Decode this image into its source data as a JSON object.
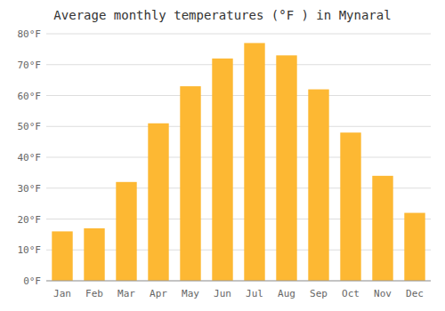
{
  "chart_data": {
    "type": "bar",
    "title": "Average monthly temperatures (°F ) in Mynaral",
    "categories": [
      "Jan",
      "Feb",
      "Mar",
      "Apr",
      "May",
      "Jun",
      "Jul",
      "Aug",
      "Sep",
      "Oct",
      "Nov",
      "Dec"
    ],
    "values": [
      16,
      17,
      32,
      51,
      63,
      72,
      77,
      73,
      62,
      48,
      34,
      22
    ],
    "color": "#FDB833",
    "ylim": [
      0,
      80
    ],
    "yticks": [
      {
        "value": 0,
        "label": "0°F"
      },
      {
        "value": 10,
        "label": "10°F"
      },
      {
        "value": 20,
        "label": "20°F"
      },
      {
        "value": 30,
        "label": "30°F"
      },
      {
        "value": 40,
        "label": "40°F"
      },
      {
        "value": 50,
        "label": "50°F"
      },
      {
        "value": 60,
        "label": "60°F"
      },
      {
        "value": 70,
        "label": "70°F"
      },
      {
        "value": 80,
        "label": "80°F"
      }
    ],
    "grid": true
  }
}
